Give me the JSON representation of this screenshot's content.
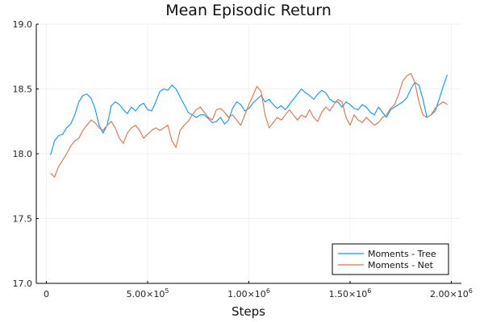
{
  "chart_data": {
    "type": "line",
    "title": "Mean Episodic Return",
    "xlabel": "Steps",
    "ylabel": "",
    "xlim": [
      -50000,
      2050000
    ],
    "ylim": [
      17.0,
      19.0
    ],
    "x_ticks": [
      {
        "value": 0,
        "mantissa": "0",
        "exp": ""
      },
      {
        "value": 500000,
        "mantissa": "5.00×10",
        "exp": "5"
      },
      {
        "value": 1000000,
        "mantissa": "1.00×10",
        "exp": "6"
      },
      {
        "value": 1500000,
        "mantissa": "1.50×10",
        "exp": "6"
      },
      {
        "value": 2000000,
        "mantissa": "2.00×10",
        "exp": "6"
      }
    ],
    "y_ticks": [
      {
        "value": 17.0,
        "label": "17.0"
      },
      {
        "value": 17.5,
        "label": "17.5"
      },
      {
        "value": 18.0,
        "label": "18.0"
      },
      {
        "value": 18.5,
        "label": "18.5"
      },
      {
        "value": 19.0,
        "label": "19.0"
      }
    ],
    "grid": true,
    "legend_position": "bottom-right",
    "series": [
      {
        "name": "Moments - Tree",
        "color": "#009AFA",
        "x": [
          20000,
          40000,
          60000,
          80000,
          100000,
          120000,
          140000,
          160000,
          180000,
          200000,
          220000,
          240000,
          260000,
          280000,
          300000,
          320000,
          340000,
          360000,
          380000,
          400000,
          420000,
          440000,
          460000,
          480000,
          500000,
          520000,
          540000,
          560000,
          580000,
          600000,
          620000,
          640000,
          660000,
          680000,
          700000,
          720000,
          740000,
          760000,
          780000,
          800000,
          820000,
          840000,
          860000,
          880000,
          900000,
          920000,
          940000,
          960000,
          980000,
          1000000,
          1020000,
          1040000,
          1060000,
          1080000,
          1100000,
          1120000,
          1140000,
          1160000,
          1180000,
          1200000,
          1220000,
          1240000,
          1260000,
          1280000,
          1300000,
          1320000,
          1340000,
          1360000,
          1380000,
          1400000,
          1420000,
          1440000,
          1460000,
          1480000,
          1500000,
          1520000,
          1540000,
          1560000,
          1580000,
          1600000,
          1620000,
          1640000,
          1660000,
          1680000,
          1700000,
          1720000,
          1740000,
          1760000,
          1780000,
          1800000,
          1820000,
          1840000,
          1860000,
          1880000,
          1900000,
          1920000,
          1940000,
          1960000,
          1980000
        ],
        "y": [
          17.99,
          18.1,
          18.14,
          18.15,
          18.2,
          18.23,
          18.3,
          18.4,
          18.45,
          18.46,
          18.43,
          18.35,
          18.22,
          18.16,
          18.22,
          18.37,
          18.4,
          18.38,
          18.34,
          18.31,
          18.36,
          18.33,
          18.37,
          18.39,
          18.34,
          18.33,
          18.4,
          18.48,
          18.5,
          18.49,
          18.53,
          18.5,
          18.44,
          18.38,
          18.32,
          18.3,
          18.28,
          18.3,
          18.3,
          18.27,
          18.24,
          18.25,
          18.28,
          18.23,
          18.26,
          18.35,
          18.4,
          18.38,
          18.33,
          18.35,
          18.39,
          18.42,
          18.45,
          18.4,
          18.42,
          18.38,
          18.35,
          18.37,
          18.34,
          18.38,
          18.42,
          18.46,
          18.5,
          18.47,
          18.45,
          18.42,
          18.46,
          18.49,
          18.47,
          18.42,
          18.4,
          18.4,
          18.36,
          18.4,
          18.38,
          18.35,
          18.34,
          18.38,
          18.36,
          18.32,
          18.3,
          18.36,
          18.32,
          18.28,
          18.34,
          18.36,
          18.38,
          18.4,
          18.43,
          18.5,
          18.55,
          18.53,
          18.42,
          18.28,
          18.3,
          18.33,
          18.42,
          18.52,
          18.61
        ]
      },
      {
        "name": "Moments - Net",
        "color": "#E26F46",
        "x": [
          20000,
          40000,
          60000,
          80000,
          100000,
          120000,
          140000,
          160000,
          180000,
          200000,
          220000,
          240000,
          260000,
          280000,
          300000,
          320000,
          340000,
          360000,
          380000,
          400000,
          420000,
          440000,
          460000,
          480000,
          500000,
          520000,
          540000,
          560000,
          580000,
          600000,
          620000,
          640000,
          660000,
          680000,
          700000,
          720000,
          740000,
          760000,
          780000,
          800000,
          820000,
          840000,
          860000,
          880000,
          900000,
          920000,
          940000,
          960000,
          980000,
          1000000,
          1020000,
          1040000,
          1060000,
          1080000,
          1100000,
          1120000,
          1140000,
          1160000,
          1180000,
          1200000,
          1220000,
          1240000,
          1260000,
          1280000,
          1300000,
          1320000,
          1340000,
          1360000,
          1380000,
          1400000,
          1420000,
          1440000,
          1460000,
          1480000,
          1500000,
          1520000,
          1540000,
          1560000,
          1580000,
          1600000,
          1620000,
          1640000,
          1660000,
          1680000,
          1700000,
          1720000,
          1740000,
          1760000,
          1780000,
          1800000,
          1820000,
          1840000,
          1860000,
          1880000,
          1900000,
          1920000,
          1940000,
          1960000,
          1980000
        ],
        "y": [
          17.85,
          17.82,
          17.9,
          17.95,
          18.0,
          18.06,
          18.1,
          18.12,
          18.18,
          18.22,
          18.26,
          18.24,
          18.2,
          18.18,
          18.22,
          18.25,
          18.2,
          18.12,
          18.08,
          18.16,
          18.2,
          18.22,
          18.18,
          18.12,
          18.15,
          18.18,
          18.2,
          18.18,
          18.2,
          18.22,
          18.1,
          18.05,
          18.18,
          18.22,
          18.25,
          18.3,
          18.34,
          18.36,
          18.32,
          18.28,
          18.26,
          18.34,
          18.35,
          18.32,
          18.28,
          18.3,
          18.26,
          18.22,
          18.3,
          18.38,
          18.45,
          18.52,
          18.48,
          18.3,
          18.2,
          18.24,
          18.28,
          18.26,
          18.3,
          18.34,
          18.3,
          18.26,
          18.3,
          18.28,
          18.34,
          18.28,
          18.25,
          18.32,
          18.36,
          18.33,
          18.38,
          18.42,
          18.4,
          18.28,
          18.22,
          18.3,
          18.26,
          18.24,
          18.28,
          18.25,
          18.22,
          18.24,
          18.28,
          18.3,
          18.35,
          18.38,
          18.46,
          18.56,
          18.6,
          18.62,
          18.55,
          18.4,
          18.3,
          18.28,
          18.3,
          18.35,
          18.38,
          18.4,
          18.38
        ]
      }
    ]
  }
}
